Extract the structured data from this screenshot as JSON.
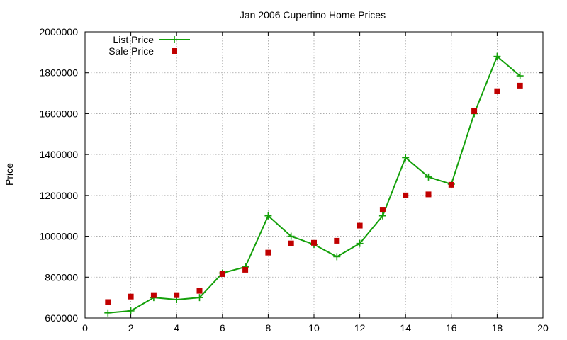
{
  "chart_data": {
    "type": "line",
    "title": "Jan 2006 Cupertino Home Prices",
    "xlabel": "",
    "ylabel": "Price",
    "xlim": [
      0,
      20
    ],
    "ylim": [
      600000,
      2000000
    ],
    "x_ticks": [
      0,
      2,
      4,
      6,
      8,
      10,
      12,
      14,
      16,
      18,
      20
    ],
    "y_ticks": [
      600000,
      800000,
      1000000,
      1200000,
      1400000,
      1600000,
      1800000,
      2000000
    ],
    "grid": true,
    "legend_position": "top-left",
    "series": [
      {
        "name": "List Price",
        "style": "line-plus",
        "color": "#14a00a",
        "x": [
          1,
          2,
          3,
          4,
          5,
          6,
          7,
          8,
          9,
          10,
          11,
          12,
          13,
          14,
          15,
          16,
          17,
          18,
          19
        ],
        "values": [
          625000,
          635000,
          700000,
          690000,
          700000,
          820000,
          850000,
          1100000,
          1000000,
          960000,
          900000,
          965000,
          1100000,
          1385000,
          1290000,
          1255000,
          1600000,
          1880000,
          1785000
        ]
      },
      {
        "name": "Sale Price",
        "style": "square",
        "color": "#c00000",
        "x": [
          1,
          2,
          3,
          4,
          5,
          6,
          7,
          8,
          9,
          10,
          11,
          12,
          13,
          14,
          15,
          16,
          17,
          18,
          19
        ],
        "values": [
          678000,
          705000,
          712000,
          712000,
          733000,
          815000,
          836000,
          920000,
          965000,
          968000,
          978000,
          1052000,
          1130000,
          1200000,
          1205000,
          1252000,
          1612000,
          1710000,
          1737000
        ]
      }
    ]
  }
}
